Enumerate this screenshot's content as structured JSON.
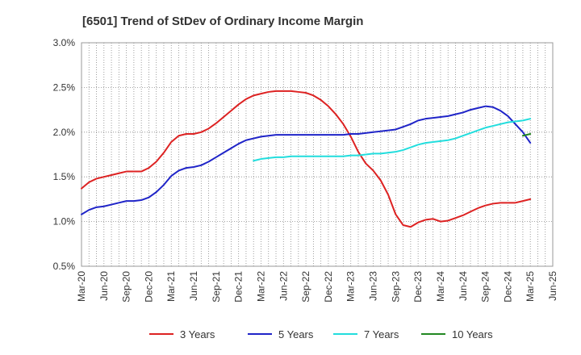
{
  "chart_data": {
    "type": "line",
    "title": "[6501]  Trend of StDev of Ordinary Income Margin",
    "xlabel": "",
    "ylabel": "",
    "ylim": [
      0.5,
      3.0
    ],
    "y_ticks": [
      "0.5%",
      "1.0%",
      "1.5%",
      "2.0%",
      "2.5%",
      "3.0%"
    ],
    "x_ticks": [
      "Mar-20",
      "Jun-20",
      "Sep-20",
      "Dec-20",
      "Mar-21",
      "Jun-21",
      "Sep-21",
      "Dec-21",
      "Mar-22",
      "Jun-22",
      "Sep-22",
      "Dec-22",
      "Mar-23",
      "Jun-23",
      "Sep-23",
      "Dec-23",
      "Mar-24",
      "Jun-24",
      "Sep-24",
      "Dec-24",
      "Mar-25",
      "Jun-25"
    ],
    "grid": true,
    "legend_position": "bottom",
    "series": [
      {
        "name": "3 Years",
        "color": "#dd2222",
        "points": [
          [
            "2020-03",
            1.37
          ],
          [
            "2020-04",
            1.44
          ],
          [
            "2020-05",
            1.48
          ],
          [
            "2020-06",
            1.5
          ],
          [
            "2020-07",
            1.52
          ],
          [
            "2020-08",
            1.54
          ],
          [
            "2020-09",
            1.56
          ],
          [
            "2020-10",
            1.56
          ],
          [
            "2020-11",
            1.56
          ],
          [
            "2020-12",
            1.6
          ],
          [
            "2021-01",
            1.67
          ],
          [
            "2021-02",
            1.77
          ],
          [
            "2021-03",
            1.89
          ],
          [
            "2021-04",
            1.96
          ],
          [
            "2021-05",
            1.98
          ],
          [
            "2021-06",
            1.98
          ],
          [
            "2021-07",
            2.0
          ],
          [
            "2021-08",
            2.04
          ],
          [
            "2021-09",
            2.1
          ],
          [
            "2021-10",
            2.17
          ],
          [
            "2021-11",
            2.24
          ],
          [
            "2021-12",
            2.31
          ],
          [
            "2022-01",
            2.37
          ],
          [
            "2022-02",
            2.41
          ],
          [
            "2022-03",
            2.43
          ],
          [
            "2022-04",
            2.45
          ],
          [
            "2022-05",
            2.46
          ],
          [
            "2022-06",
            2.46
          ],
          [
            "2022-07",
            2.46
          ],
          [
            "2022-08",
            2.45
          ],
          [
            "2022-09",
            2.44
          ],
          [
            "2022-10",
            2.41
          ],
          [
            "2022-11",
            2.36
          ],
          [
            "2022-12",
            2.29
          ],
          [
            "2023-01",
            2.2
          ],
          [
            "2023-02",
            2.09
          ],
          [
            "2023-03",
            1.95
          ],
          [
            "2023-04",
            1.78
          ],
          [
            "2023-05",
            1.65
          ],
          [
            "2023-06",
            1.57
          ],
          [
            "2023-07",
            1.46
          ],
          [
            "2023-08",
            1.3
          ],
          [
            "2023-09",
            1.08
          ],
          [
            "2023-10",
            0.96
          ],
          [
            "2023-11",
            0.94
          ],
          [
            "2023-12",
            0.99
          ],
          [
            "2024-01",
            1.02
          ],
          [
            "2024-02",
            1.03
          ],
          [
            "2024-03",
            1.0
          ],
          [
            "2024-04",
            1.01
          ],
          [
            "2024-05",
            1.04
          ],
          [
            "2024-06",
            1.07
          ],
          [
            "2024-07",
            1.11
          ],
          [
            "2024-08",
            1.15
          ],
          [
            "2024-09",
            1.18
          ],
          [
            "2024-10",
            1.2
          ],
          [
            "2024-11",
            1.21
          ],
          [
            "2024-12",
            1.21
          ],
          [
            "2025-01",
            1.21
          ],
          [
            "2025-02",
            1.23
          ],
          [
            "2025-03",
            1.25
          ]
        ]
      },
      {
        "name": "5 Years",
        "color": "#1f24c8",
        "points": [
          [
            "2020-03",
            1.08
          ],
          [
            "2020-04",
            1.13
          ],
          [
            "2020-05",
            1.16
          ],
          [
            "2020-06",
            1.17
          ],
          [
            "2020-07",
            1.19
          ],
          [
            "2020-08",
            1.21
          ],
          [
            "2020-09",
            1.23
          ],
          [
            "2020-10",
            1.23
          ],
          [
            "2020-11",
            1.24
          ],
          [
            "2020-12",
            1.27
          ],
          [
            "2021-01",
            1.33
          ],
          [
            "2021-02",
            1.41
          ],
          [
            "2021-03",
            1.51
          ],
          [
            "2021-04",
            1.57
          ],
          [
            "2021-05",
            1.6
          ],
          [
            "2021-06",
            1.61
          ],
          [
            "2021-07",
            1.63
          ],
          [
            "2021-08",
            1.67
          ],
          [
            "2021-09",
            1.72
          ],
          [
            "2021-10",
            1.77
          ],
          [
            "2021-11",
            1.82
          ],
          [
            "2021-12",
            1.87
          ],
          [
            "2022-01",
            1.91
          ],
          [
            "2022-02",
            1.93
          ],
          [
            "2022-03",
            1.95
          ],
          [
            "2022-04",
            1.96
          ],
          [
            "2022-05",
            1.97
          ],
          [
            "2022-06",
            1.97
          ],
          [
            "2022-07",
            1.97
          ],
          [
            "2022-08",
            1.97
          ],
          [
            "2022-09",
            1.97
          ],
          [
            "2022-10",
            1.97
          ],
          [
            "2022-11",
            1.97
          ],
          [
            "2022-12",
            1.97
          ],
          [
            "2023-01",
            1.97
          ],
          [
            "2023-02",
            1.97
          ],
          [
            "2023-03",
            1.98
          ],
          [
            "2023-04",
            1.98
          ],
          [
            "2023-05",
            1.99
          ],
          [
            "2023-06",
            2.0
          ],
          [
            "2023-07",
            2.01
          ],
          [
            "2023-08",
            2.02
          ],
          [
            "2023-09",
            2.03
          ],
          [
            "2023-10",
            2.06
          ],
          [
            "2023-11",
            2.09
          ],
          [
            "2023-12",
            2.13
          ],
          [
            "2024-01",
            2.15
          ],
          [
            "2024-02",
            2.16
          ],
          [
            "2024-03",
            2.17
          ],
          [
            "2024-04",
            2.18
          ],
          [
            "2024-05",
            2.2
          ],
          [
            "2024-06",
            2.22
          ],
          [
            "2024-07",
            2.25
          ],
          [
            "2024-08",
            2.27
          ],
          [
            "2024-09",
            2.29
          ],
          [
            "2024-10",
            2.28
          ],
          [
            "2024-11",
            2.24
          ],
          [
            "2024-12",
            2.18
          ],
          [
            "2025-01",
            2.09
          ],
          [
            "2025-02",
            2.0
          ],
          [
            "2025-03",
            1.88
          ]
        ]
      },
      {
        "name": "7 Years",
        "color": "#22dddd",
        "points": [
          [
            "2022-02",
            1.68
          ],
          [
            "2022-03",
            1.7
          ],
          [
            "2022-04",
            1.71
          ],
          [
            "2022-05",
            1.72
          ],
          [
            "2022-06",
            1.72
          ],
          [
            "2022-07",
            1.73
          ],
          [
            "2022-08",
            1.73
          ],
          [
            "2022-09",
            1.73
          ],
          [
            "2022-10",
            1.73
          ],
          [
            "2022-11",
            1.73
          ],
          [
            "2022-12",
            1.73
          ],
          [
            "2023-01",
            1.73
          ],
          [
            "2023-02",
            1.73
          ],
          [
            "2023-03",
            1.74
          ],
          [
            "2023-04",
            1.74
          ],
          [
            "2023-05",
            1.75
          ],
          [
            "2023-06",
            1.76
          ],
          [
            "2023-07",
            1.76
          ],
          [
            "2023-08",
            1.77
          ],
          [
            "2023-09",
            1.78
          ],
          [
            "2023-10",
            1.8
          ],
          [
            "2023-11",
            1.83
          ],
          [
            "2023-12",
            1.86
          ],
          [
            "2024-01",
            1.88
          ],
          [
            "2024-02",
            1.89
          ],
          [
            "2024-03",
            1.9
          ],
          [
            "2024-04",
            1.91
          ],
          [
            "2024-05",
            1.93
          ],
          [
            "2024-06",
            1.96
          ],
          [
            "2024-07",
            1.99
          ],
          [
            "2024-08",
            2.02
          ],
          [
            "2024-09",
            2.05
          ],
          [
            "2024-10",
            2.07
          ],
          [
            "2024-11",
            2.09
          ],
          [
            "2024-12",
            2.11
          ],
          [
            "2025-01",
            2.12
          ],
          [
            "2025-02",
            2.13
          ],
          [
            "2025-03",
            2.15
          ]
        ]
      },
      {
        "name": "10 Years",
        "color": "#228822",
        "points": [
          [
            "2025-02",
            1.96
          ],
          [
            "2025-03",
            1.98
          ]
        ]
      }
    ]
  }
}
